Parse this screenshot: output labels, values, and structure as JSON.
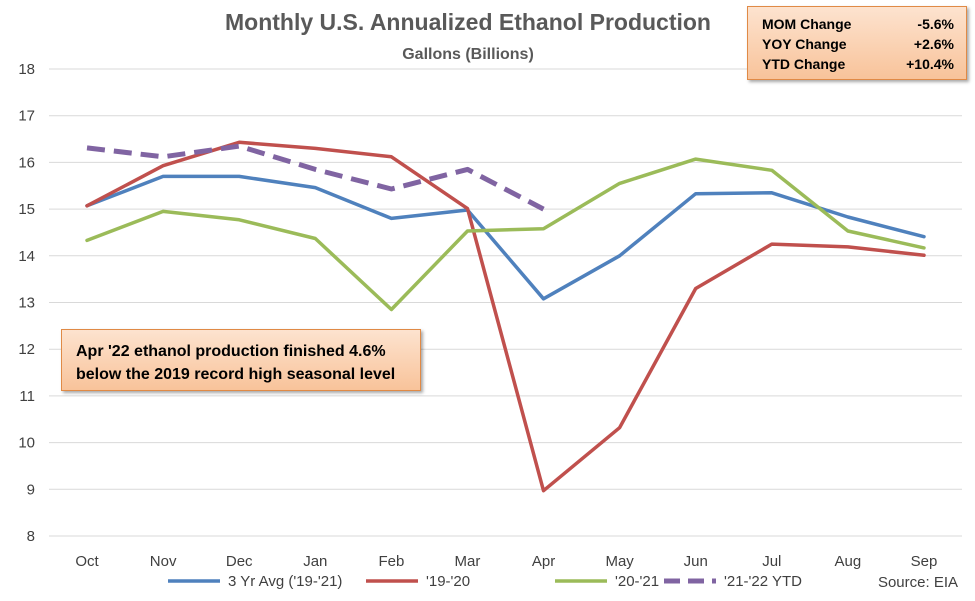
{
  "chart_data": {
    "type": "line",
    "title": "Monthly U.S. Annualized Ethanol Production",
    "subtitle": "Gallons (Billions)",
    "categories": [
      "Oct",
      "Nov",
      "Dec",
      "Jan",
      "Feb",
      "Mar",
      "Apr",
      "May",
      "Jun",
      "Jul",
      "Aug",
      "Sep"
    ],
    "yticks": [
      "8",
      "9",
      "10",
      "11",
      "12",
      "13",
      "14",
      "15",
      "16",
      "17",
      "18"
    ],
    "ylim": [
      8,
      18
    ],
    "grid": true,
    "legend_position": "bottom",
    "series": [
      {
        "name": "3 Yr Avg ('19-'21)",
        "color": "#4f81bd",
        "dashed": false,
        "values": [
          15.07,
          15.7,
          15.7,
          15.46,
          14.8,
          14.98,
          13.08,
          14.0,
          15.33,
          15.35,
          14.83,
          14.41
        ]
      },
      {
        "name": "'19-'20",
        "color": "#c0504d",
        "dashed": false,
        "values": [
          15.07,
          15.93,
          16.43,
          16.3,
          16.12,
          15.01,
          8.97,
          10.32,
          13.3,
          14.25,
          14.19,
          14.01
        ]
      },
      {
        "name": "'20-'21",
        "color": "#9bbb59",
        "dashed": false,
        "values": [
          14.33,
          14.95,
          14.77,
          14.37,
          12.85,
          14.53,
          14.58,
          15.55,
          16.07,
          15.83,
          14.53,
          14.17
        ]
      },
      {
        "name": "'21-'22 YTD",
        "color": "#8064a2",
        "dashed": true,
        "values": [
          16.31,
          16.12,
          16.35,
          15.85,
          15.43,
          15.85,
          15.0,
          null,
          null,
          null,
          null,
          null
        ]
      }
    ]
  },
  "stats": [
    {
      "label": "MOM Change",
      "value": "-5.6%"
    },
    {
      "label": "YOY Change",
      "value": "+2.6%"
    },
    {
      "label": "YTD Change",
      "value": "+10.4%"
    }
  ],
  "note": {
    "line1": "Apr '22 ethanol production finished 4.6%",
    "line2": "below the 2019 record high seasonal level"
  },
  "source": "Source: EIA"
}
